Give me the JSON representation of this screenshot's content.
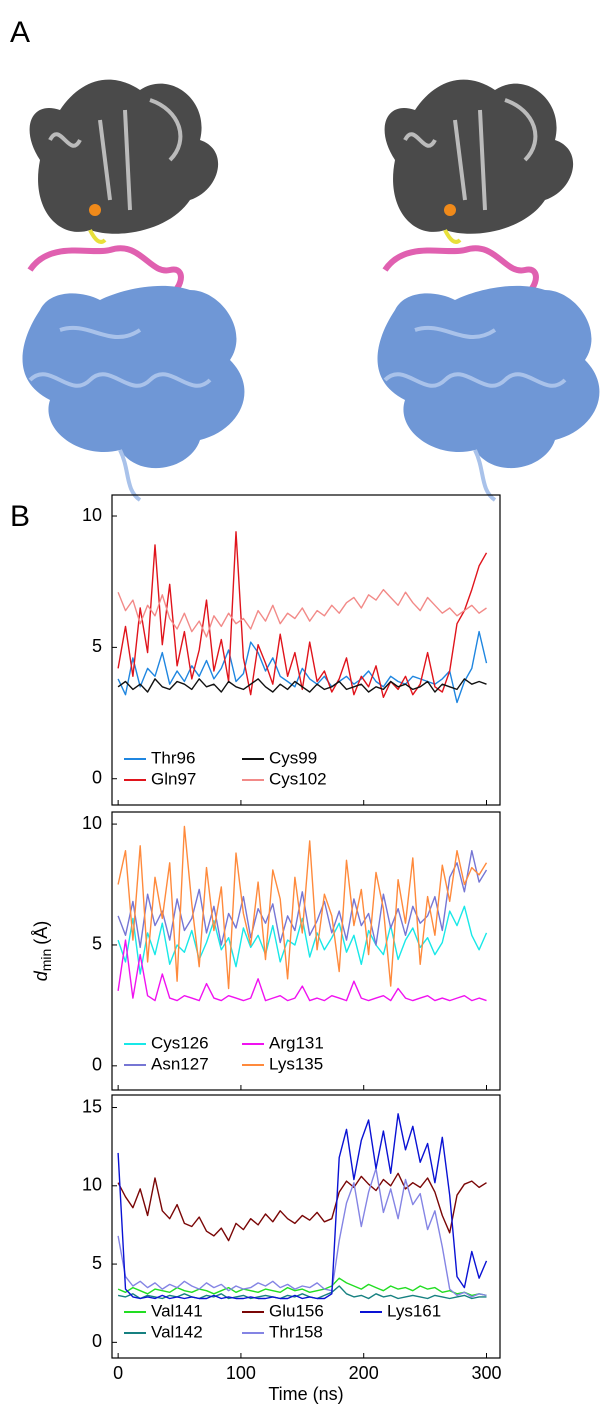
{
  "panels": [
    "A",
    "B"
  ],
  "chart_data": [
    {
      "type": "line",
      "x": [
        0,
        6,
        12,
        18,
        24,
        30,
        36,
        42,
        48,
        54,
        60,
        66,
        72,
        78,
        84,
        90,
        96,
        102,
        108,
        114,
        120,
        126,
        132,
        138,
        144,
        150,
        156,
        162,
        168,
        174,
        180,
        186,
        192,
        198,
        204,
        210,
        216,
        222,
        228,
        234,
        240,
        246,
        252,
        258,
        264,
        270,
        276,
        282,
        288,
        294,
        300
      ],
      "xlim": [
        -5,
        311
      ],
      "ylim": [
        -1,
        10.8
      ],
      "xticks": [
        0,
        100,
        200,
        300
      ],
      "yticks": [
        0,
        5,
        10
      ],
      "legend": "lower left",
      "series": [
        {
          "name": "Thr96",
          "color": "#1f86e0",
          "values": [
            3.8,
            3.2,
            4.6,
            3.5,
            4.2,
            3.9,
            4.8,
            3.6,
            4.1,
            3.7,
            4.3,
            3.9,
            4.5,
            3.8,
            4.2,
            4.9,
            3.7,
            4.0,
            5.2,
            4.8,
            4.1,
            4.6,
            3.9,
            3.7,
            3.5,
            4.2,
            3.8,
            3.6,
            3.9,
            3.5,
            3.7,
            3.9,
            3.6,
            3.8,
            4.1,
            3.7,
            3.5,
            3.9,
            3.7,
            3.6,
            3.9,
            3.8,
            3.7,
            3.6,
            3.8,
            4.1,
            2.9,
            3.7,
            4.2,
            5.6,
            4.4
          ]
        },
        {
          "name": "Gln97",
          "color": "#e0141c",
          "values": [
            4.2,
            5.8,
            3.9,
            6.5,
            4.8,
            8.9,
            5.1,
            7.4,
            4.3,
            5.6,
            3.8,
            4.9,
            6.8,
            4.1,
            5.3,
            3.7,
            9.4,
            4.6,
            3.2,
            5.1,
            4.4,
            3.6,
            5.5,
            3.9,
            4.8,
            3.4,
            5.2,
            3.7,
            4.1,
            3.3,
            3.8,
            4.6,
            3.2,
            3.9,
            3.5,
            4.3,
            3.1,
            3.7,
            3.4,
            3.9,
            3.2,
            3.6,
            4.8,
            3.5,
            3.3,
            4.1,
            5.9,
            6.4,
            7.2,
            8.1,
            8.6
          ]
        },
        {
          "name": "Cys99",
          "color": "#111111",
          "values": [
            3.5,
            3.7,
            3.4,
            3.6,
            3.3,
            3.8,
            3.5,
            3.4,
            3.7,
            3.6,
            3.4,
            3.8,
            3.5,
            3.6,
            3.3,
            3.7,
            3.5,
            3.4,
            3.6,
            3.8,
            3.5,
            3.3,
            3.6,
            3.4,
            3.7,
            3.5,
            3.3,
            3.6,
            3.4,
            3.5,
            3.7,
            3.4,
            3.5,
            3.6,
            3.3,
            3.5,
            3.4,
            3.7,
            3.5,
            3.6,
            3.4,
            3.5,
            3.7,
            3.3,
            3.6,
            3.5,
            3.4,
            3.8,
            3.6,
            3.7,
            3.6
          ]
        },
        {
          "name": "Cys102",
          "color": "#f28a88",
          "values": [
            7.1,
            6.4,
            6.8,
            5.9,
            6.6,
            6.2,
            7.0,
            6.1,
            5.7,
            6.3,
            5.6,
            6.0,
            5.4,
            6.2,
            5.8,
            6.3,
            5.9,
            6.1,
            5.7,
            6.4,
            6.0,
            6.6,
            5.9,
            6.3,
            6.1,
            6.5,
            6.0,
            6.4,
            6.2,
            6.6,
            6.3,
            6.7,
            6.9,
            6.5,
            7.0,
            6.8,
            7.2,
            6.9,
            6.6,
            7.1,
            6.7,
            6.4,
            6.9,
            6.6,
            6.3,
            6.5,
            6.2,
            6.4,
            6.6,
            6.3,
            6.5
          ]
        }
      ]
    },
    {
      "type": "line",
      "x": [
        0,
        6,
        12,
        18,
        24,
        30,
        36,
        42,
        48,
        54,
        60,
        66,
        72,
        78,
        84,
        90,
        96,
        102,
        108,
        114,
        120,
        126,
        132,
        138,
        144,
        150,
        156,
        162,
        168,
        174,
        180,
        186,
        192,
        198,
        204,
        210,
        216,
        222,
        228,
        234,
        240,
        246,
        252,
        258,
        264,
        270,
        276,
        282,
        288,
        294,
        300
      ],
      "xlim": [
        -5,
        311
      ],
      "ylim": [
        -1,
        10.5
      ],
      "xticks": [
        0,
        100,
        200,
        300
      ],
      "yticks": [
        0,
        5,
        10
      ],
      "legend": "lower left",
      "ylabel": {
        "symbol": "d",
        "subscript": "min",
        "unit": "(Å)"
      },
      "series": [
        {
          "name": "Cys126",
          "color": "#18e8e8",
          "values": [
            5.2,
            4.3,
            6.1,
            3.8,
            5.5,
            4.6,
            5.9,
            4.2,
            5.0,
            4.7,
            5.6,
            4.4,
            5.1,
            6.0,
            4.8,
            5.3,
            4.1,
            5.7,
            4.9,
            5.4,
            4.6,
            5.8,
            4.3,
            5.2,
            5.0,
            6.1,
            4.5,
            5.5,
            4.8,
            5.3,
            5.9,
            4.7,
            5.4,
            4.2,
            5.6,
            5.0,
            4.6,
            5.8,
            4.4,
            5.2,
            5.7,
            4.9,
            5.3,
            4.6,
            5.1,
            6.4,
            5.8,
            6.6,
            5.4,
            4.8,
            5.5
          ]
        },
        {
          "name": "Asn127",
          "color": "#7676d4",
          "values": [
            6.2,
            5.4,
            6.8,
            4.9,
            7.1,
            5.8,
            6.4,
            5.2,
            6.9,
            5.6,
            6.1,
            7.3,
            5.5,
            6.6,
            5.0,
            6.3,
            5.7,
            7.0,
            5.3,
            6.5,
            5.9,
            6.7,
            5.1,
            6.2,
            5.6,
            7.2,
            5.4,
            6.0,
            6.8,
            5.5,
            6.4,
            5.2,
            6.9,
            5.8,
            6.3,
            5.0,
            7.1,
            5.7,
            6.5,
            5.4,
            6.6,
            5.9,
            6.2,
            7.0,
            5.6,
            7.8,
            8.4,
            7.2,
            8.9,
            7.6,
            8.1
          ]
        },
        {
          "name": "Arg131",
          "color": "#f012f0",
          "values": [
            3.1,
            5.2,
            2.8,
            4.6,
            2.9,
            2.7,
            3.8,
            2.8,
            2.7,
            2.9,
            2.8,
            2.7,
            3.4,
            2.8,
            2.7,
            2.9,
            2.8,
            2.7,
            2.8,
            3.6,
            2.7,
            2.8,
            2.9,
            2.7,
            2.8,
            3.3,
            2.7,
            2.8,
            2.7,
            2.9,
            2.8,
            2.7,
            3.5,
            2.8,
            2.7,
            2.8,
            2.9,
            2.7,
            3.2,
            2.8,
            2.7,
            2.8,
            2.9,
            2.7,
            2.8,
            2.7,
            2.8,
            2.9,
            2.7,
            2.8,
            2.7
          ]
        },
        {
          "name": "Lys135",
          "color": "#ff8a3c",
          "values": [
            7.5,
            8.9,
            5.2,
            9.1,
            4.3,
            7.8,
            6.1,
            8.4,
            3.5,
            9.9,
            6.7,
            4.1,
            8.2,
            5.6,
            7.4,
            3.2,
            8.8,
            6.3,
            5.0,
            7.6,
            4.4,
            8.1,
            6.9,
            3.6,
            7.8,
            5.5,
            9.3,
            4.8,
            7.1,
            6.2,
            3.9,
            8.5,
            5.8,
            7.3,
            4.6,
            8.0,
            6.5,
            3.3,
            7.7,
            5.9,
            8.6,
            4.2,
            7.0,
            5.4,
            8.3,
            6.8,
            8.9,
            7.5,
            8.2,
            7.9,
            8.4
          ]
        }
      ]
    },
    {
      "type": "line",
      "x": [
        0,
        6,
        12,
        18,
        24,
        30,
        36,
        42,
        48,
        54,
        60,
        66,
        72,
        78,
        84,
        90,
        96,
        102,
        108,
        114,
        120,
        126,
        132,
        138,
        144,
        150,
        156,
        162,
        168,
        174,
        180,
        186,
        192,
        198,
        204,
        210,
        216,
        222,
        228,
        234,
        240,
        246,
        252,
        258,
        264,
        270,
        276,
        282,
        288,
        294,
        300
      ],
      "xlim": [
        -5,
        311
      ],
      "ylim": [
        -1,
        15.8
      ],
      "xticks": [
        0,
        100,
        200,
        300
      ],
      "yticks": [
        0,
        5,
        10,
        15
      ],
      "legend": "lower left",
      "xlabel": "Time (ns)",
      "series": [
        {
          "name": "Val141",
          "color": "#22dd22",
          "values": [
            3.4,
            3.2,
            3.5,
            3.3,
            3.1,
            3.4,
            3.3,
            3.2,
            3.5,
            3.3,
            3.2,
            3.4,
            3.3,
            3.1,
            3.3,
            3.5,
            3.2,
            3.4,
            3.3,
            3.2,
            3.4,
            3.3,
            3.2,
            3.5,
            3.3,
            3.4,
            3.2,
            3.3,
            3.4,
            3.6,
            4.1,
            3.8,
            3.6,
            3.4,
            3.7,
            3.5,
            3.3,
            3.6,
            3.4,
            3.5,
            3.3,
            3.6,
            3.4,
            3.5,
            3.2,
            3.3,
            3.1,
            3.2,
            3.0,
            3.1,
            3.0
          ]
        },
        {
          "name": "Val142",
          "color": "#168080",
          "values": [
            3.0,
            2.9,
            3.1,
            2.8,
            3.0,
            2.9,
            2.8,
            3.0,
            2.9,
            3.1,
            2.9,
            2.8,
            3.0,
            2.9,
            3.1,
            2.8,
            2.9,
            3.0,
            2.8,
            2.9,
            3.0,
            2.9,
            2.8,
            3.0,
            2.9,
            3.1,
            2.9,
            2.8,
            3.0,
            3.2,
            3.6,
            3.1,
            2.9,
            3.0,
            2.8,
            3.1,
            2.9,
            3.0,
            2.8,
            2.9,
            3.0,
            2.9,
            2.8,
            3.0,
            2.9,
            2.8,
            2.9,
            3.0,
            2.8,
            2.9,
            2.9
          ]
        },
        {
          "name": "Glu156",
          "color": "#7a0606",
          "values": [
            10.2,
            9.3,
            8.6,
            9.8,
            8.1,
            10.5,
            8.4,
            7.9,
            8.8,
            7.6,
            7.4,
            8.0,
            7.1,
            6.8,
            7.3,
            6.5,
            7.6,
            7.2,
            7.9,
            7.5,
            8.2,
            7.7,
            8.4,
            7.9,
            7.6,
            8.1,
            7.8,
            8.3,
            7.7,
            7.9,
            9.6,
            10.3,
            9.9,
            10.6,
            10.1,
            9.7,
            10.4,
            10.0,
            10.8,
            9.8,
            10.2,
            9.9,
            10.5,
            9.6,
            8.1,
            7.0,
            9.4,
            10.1,
            10.3,
            9.9,
            10.2
          ]
        },
        {
          "name": "Thr158",
          "color": "#8484e4",
          "values": [
            6.8,
            4.2,
            3.6,
            3.9,
            3.5,
            3.8,
            3.4,
            3.7,
            3.5,
            3.9,
            3.6,
            3.4,
            3.8,
            3.5,
            3.7,
            3.3,
            3.6,
            3.4,
            3.5,
            3.8,
            3.6,
            3.9,
            3.5,
            3.7,
            3.4,
            3.6,
            3.5,
            3.8,
            3.4,
            3.3,
            6.5,
            8.9,
            10.2,
            7.4,
            9.6,
            11.1,
            8.3,
            9.8,
            7.9,
            10.4,
            8.8,
            9.5,
            7.2,
            8.4,
            6.1,
            3.4,
            3.0,
            3.2,
            2.9,
            3.1,
            3.0
          ]
        },
        {
          "name": "Lys161",
          "color": "#0a12d4",
          "values": [
            12.1,
            3.4,
            2.9,
            2.8,
            2.9,
            2.8,
            3.0,
            2.8,
            2.9,
            2.8,
            2.9,
            2.8,
            2.8,
            3.0,
            2.8,
            2.9,
            2.8,
            2.8,
            2.9,
            2.8,
            2.8,
            2.9,
            2.8,
            2.8,
            3.0,
            2.8,
            2.9,
            2.8,
            2.8,
            3.1,
            11.8,
            13.6,
            10.4,
            12.9,
            14.2,
            11.1,
            13.5,
            10.8,
            14.6,
            12.3,
            13.8,
            11.5,
            12.7,
            10.2,
            13.1,
            9.4,
            4.2,
            3.5,
            5.8,
            4.1,
            5.2
          ]
        }
      ]
    }
  ]
}
